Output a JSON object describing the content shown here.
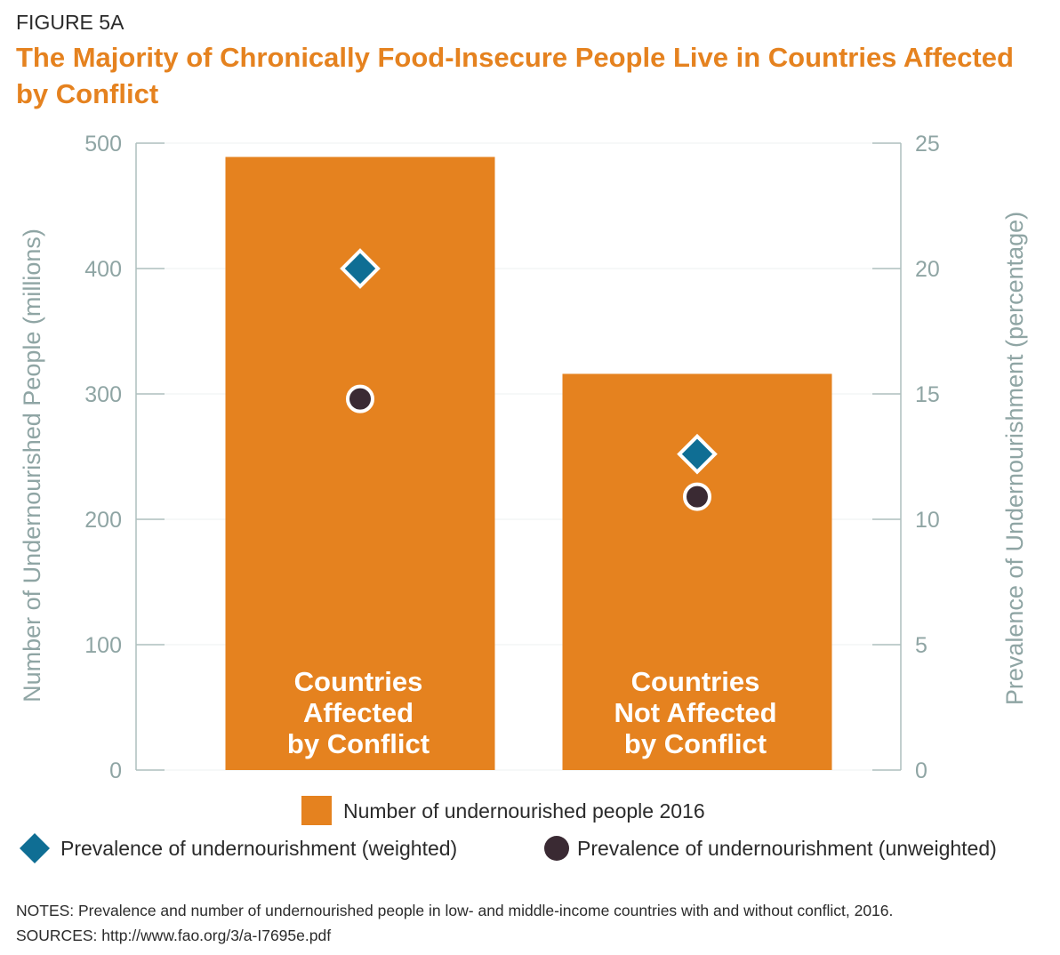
{
  "figure_label": "FIGURE 5A",
  "title": "The Majority of Chronically Food-Insecure People Live in Countries Affected by Conflict",
  "colors": {
    "bar": "#e5821f",
    "weighted_marker": "#0f6e94",
    "unweighted_marker": "#3a2a33",
    "axis": "#8fa5a4",
    "title": "#e5821f"
  },
  "chart_data": {
    "type": "bar",
    "categories": [
      [
        "Countries",
        "Affected",
        "by Conflict"
      ],
      [
        "Countries",
        "Not Affected",
        "by Conflict"
      ]
    ],
    "series": [
      {
        "name": "Number of undernourished people 2016",
        "kind": "bar",
        "axis": "left",
        "values": [
          489,
          316
        ]
      },
      {
        "name": "Prevalence of undernourishment (weighted)",
        "kind": "diamond",
        "axis": "right",
        "values": [
          20.0,
          12.6
        ]
      },
      {
        "name": "Prevalence of undernourishment (unweighted)",
        "kind": "circle",
        "axis": "right",
        "values": [
          14.8,
          10.9
        ]
      }
    ],
    "ylabel": "Number of Undernourished People (millions)",
    "ylabel_right": "Prevalence of Undernourishment (percentage)",
    "ylim": [
      0,
      500
    ],
    "ylim_right": [
      0,
      25
    ],
    "yticks": [
      0,
      100,
      200,
      300,
      400,
      500
    ],
    "yticks_right": [
      0,
      5,
      10,
      15,
      20,
      25
    ],
    "grid": true,
    "legend": [
      {
        "label": "Number of undernourished people 2016",
        "symbol": "square"
      },
      {
        "label": "Prevalence of undernourishment (weighted)",
        "symbol": "diamond"
      },
      {
        "label": "Prevalence of undernourishment (unweighted)",
        "symbol": "circle"
      }
    ],
    "legend_placement": "bottom"
  },
  "notes": "NOTES: Prevalence and number of undernourished people in low- and middle-income countries with and without conflict, 2016.",
  "sources": "SOURCES: http://www.fao.org/3/a-I7695e.pdf"
}
